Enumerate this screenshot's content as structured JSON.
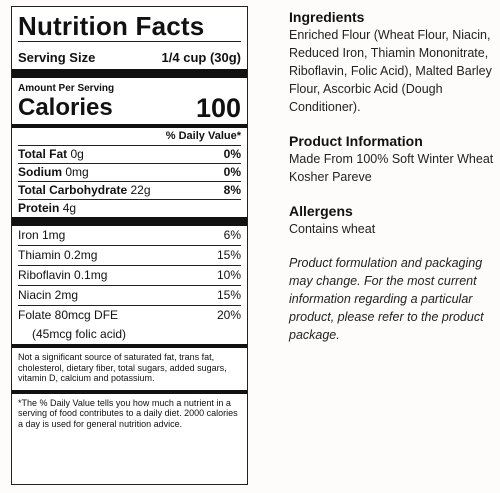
{
  "label": {
    "title": "Nutrition Facts",
    "serving_size_label": "Serving Size",
    "serving_size_value": "1/4 cup (30g)",
    "amount_per_serving": "Amount Per Serving",
    "calories_label": "Calories",
    "calories_value": "100",
    "dv_header": "% Daily Value*",
    "nutrients": [
      {
        "name": "Total Fat",
        "amount": "0g",
        "dv": "0%"
      },
      {
        "name": "Sodium",
        "amount": "0mg",
        "dv": "0%"
      },
      {
        "name": "Total Carbohydrate",
        "amount": "22g",
        "dv": "8%"
      },
      {
        "name": "Protein",
        "amount": "4g"
      }
    ],
    "vitamins": [
      {
        "name": "Iron 1mg",
        "dv": "6%"
      },
      {
        "name": "Thiamin 0.2mg",
        "dv": "15%"
      },
      {
        "name": "Riboflavin 0.1mg",
        "dv": "10%"
      },
      {
        "name": "Niacin 2mg",
        "dv": "15%"
      },
      {
        "name": "Folate 80mcg DFE",
        "dv": "20%"
      }
    ],
    "folate_sub": "(45mcg folic acid)",
    "not_significant": "Not a significant source of saturated fat, trans fat, cholesterol, dietary fiber, total sugars, added sugars, vitamin D, calcium and potassium.",
    "footnote": "*The % Daily Value tells you how much a nutrient in a serving of food contributes to a daily diet. 2000 calories a day is used for general nutrition advice."
  },
  "info": {
    "ingredients_heading": "Ingredients",
    "ingredients_text": "Enriched Flour (Wheat Flour, Niacin, Reduced Iron, Thiamin Mononitrate, Riboflavin, Folic Acid), Malted Barley Flour, Ascorbic Acid (Dough Conditioner).",
    "product_info_heading": "Product Information",
    "product_info_line1": "Made From 100% Soft Winter Wheat",
    "product_info_line2": "Kosher Pareve",
    "allergens_heading": "Allergens",
    "allergens_text": "Contains wheat",
    "disclaimer": "Product formulation and packaging may change. For the most current information regarding a particular product, please refer to the product package."
  }
}
